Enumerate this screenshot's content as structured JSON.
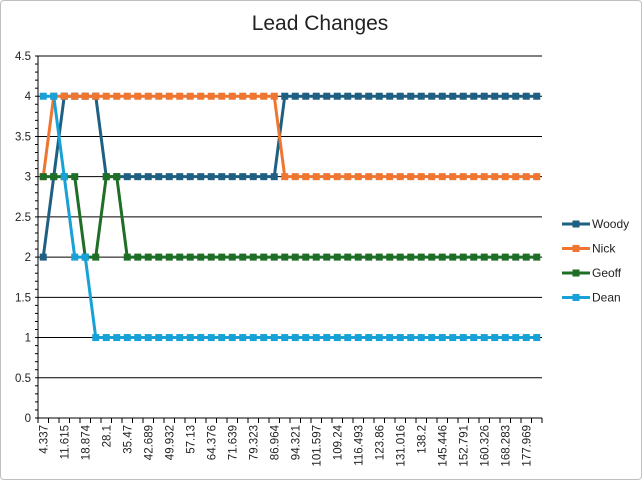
{
  "chart_data": {
    "type": "line",
    "title": "Lead Changes",
    "xlabel": "",
    "ylabel": "",
    "ylim": [
      0,
      4.5
    ],
    "y_ticks": [
      "0",
      "0.5",
      "1",
      "1.5",
      "2",
      "2.5",
      "3",
      "3.5",
      "4",
      "4.5"
    ],
    "y_tick_values": [
      0,
      0.5,
      1,
      1.5,
      2,
      2.5,
      3,
      3.5,
      4,
      4.5
    ],
    "x_tick_labels": [
      "4.337",
      "11.615",
      "18.874",
      "28.1",
      "35.47",
      "42.689",
      "49.932",
      "57.13",
      "64.376",
      "71.639",
      "79.323",
      "86.964",
      "94.321",
      "101.597",
      "109.24",
      "116.493",
      "123.86",
      "131.016",
      "138.2",
      "145.446",
      "152.791",
      "160.326",
      "168.283",
      "177.969"
    ],
    "category_count": 48,
    "grid": true,
    "legend_position": "right",
    "series": [
      {
        "name": "Woody",
        "color": "#1f5f82",
        "values": [
          2,
          3,
          4,
          4,
          4,
          4,
          3,
          3,
          3,
          3,
          3,
          3,
          3,
          3,
          3,
          3,
          3,
          3,
          3,
          3,
          3,
          3,
          3,
          4,
          4,
          4,
          4,
          4,
          4,
          4,
          4,
          4,
          4,
          4,
          4,
          4,
          4,
          4,
          4,
          4,
          4,
          4,
          4,
          4,
          4,
          4,
          4,
          4
        ]
      },
      {
        "name": "Nick",
        "color": "#ee7630",
        "values": [
          3,
          4,
          4,
          4,
          4,
          4,
          4,
          4,
          4,
          4,
          4,
          4,
          4,
          4,
          4,
          4,
          4,
          4,
          4,
          4,
          4,
          4,
          4,
          3,
          3,
          3,
          3,
          3,
          3,
          3,
          3,
          3,
          3,
          3,
          3,
          3,
          3,
          3,
          3,
          3,
          3,
          3,
          3,
          3,
          3,
          3,
          3,
          3
        ]
      },
      {
        "name": "Geoff",
        "color": "#1f6e27",
        "values": [
          3,
          3,
          3,
          3,
          2,
          2,
          3,
          3,
          2,
          2,
          2,
          2,
          2,
          2,
          2,
          2,
          2,
          2,
          2,
          2,
          2,
          2,
          2,
          2,
          2,
          2,
          2,
          2,
          2,
          2,
          2,
          2,
          2,
          2,
          2,
          2,
          2,
          2,
          2,
          2,
          2,
          2,
          2,
          2,
          2,
          2,
          2,
          2
        ]
      },
      {
        "name": "Dean",
        "color": "#17a1d6",
        "values": [
          4,
          4,
          3,
          2,
          2,
          1,
          1,
          1,
          1,
          1,
          1,
          1,
          1,
          1,
          1,
          1,
          1,
          1,
          1,
          1,
          1,
          1,
          1,
          1,
          1,
          1,
          1,
          1,
          1,
          1,
          1,
          1,
          1,
          1,
          1,
          1,
          1,
          1,
          1,
          1,
          1,
          1,
          1,
          1,
          1,
          1,
          1,
          1
        ]
      }
    ]
  }
}
